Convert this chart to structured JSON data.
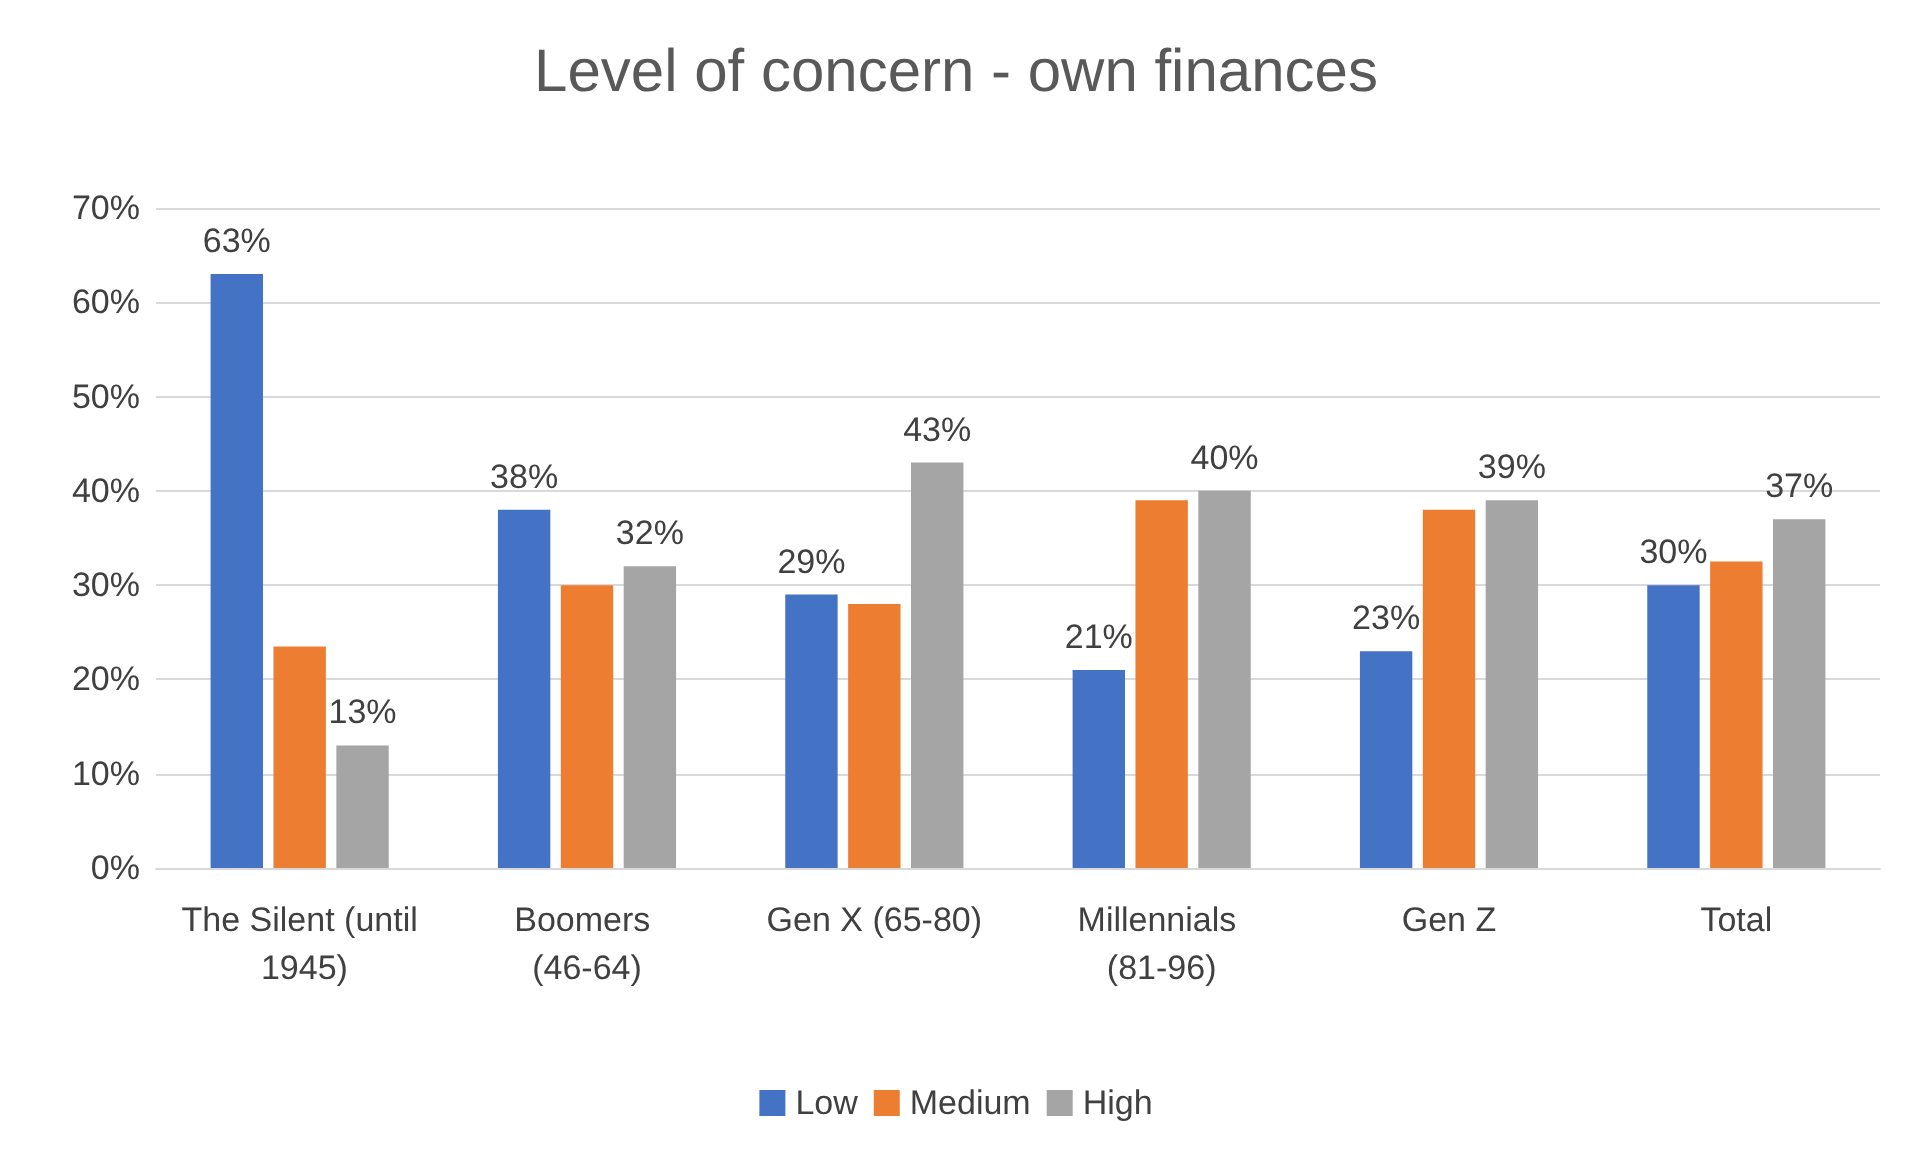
{
  "chart_data": {
    "type": "bar",
    "title": "Level of concern - own finances",
    "categories": [
      "The Silent (until 1945)",
      "Boomers (46-64)",
      "Gen X (65-80)",
      "Millennials (81-96)",
      "Gen Z",
      "Total"
    ],
    "series": [
      {
        "name": "Low",
        "color": "#4472c4",
        "values": [
          63,
          38,
          29,
          21,
          23,
          30
        ],
        "value_labels": [
          "63%",
          "38%",
          "29%",
          "21%",
          "23%",
          "30%"
        ]
      },
      {
        "name": "Medium",
        "color": "#ed7d31",
        "values": [
          23.5,
          30,
          28,
          39,
          38,
          32.5
        ]
      },
      {
        "name": "High",
        "color": "#a5a5a5",
        "values": [
          13,
          32,
          43,
          40,
          39,
          37
        ],
        "value_labels": [
          "13%",
          "32%",
          "43%",
          "40%",
          "39%",
          "37%"
        ]
      }
    ],
    "ylim": [
      0,
      70
    ],
    "yticks": [
      {
        "value": 0,
        "label": "0%"
      },
      {
        "value": 10,
        "label": "10%"
      },
      {
        "value": 20,
        "label": "20%"
      },
      {
        "value": 30,
        "label": "30%"
      },
      {
        "value": 40,
        "label": "40%"
      },
      {
        "value": 50,
        "label": "50%"
      },
      {
        "value": 60,
        "label": "60%"
      },
      {
        "value": 70,
        "label": "70%"
      }
    ],
    "grid": "y",
    "legend": "bottom"
  }
}
